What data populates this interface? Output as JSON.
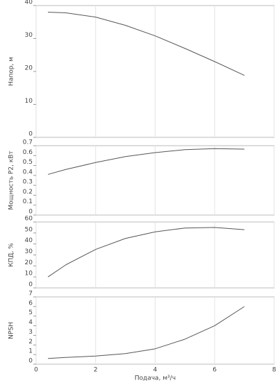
{
  "chart_data": [
    {
      "type": "line",
      "ylabel": "Напор, м",
      "x": [
        0.4,
        1,
        2,
        3,
        4,
        5,
        6,
        7
      ],
      "series": [
        {
          "color": "#555555",
          "values": [
            38,
            37.8,
            36.5,
            34,
            30.8,
            27,
            23,
            18.8
          ]
        }
      ],
      "xlim": [
        0,
        8
      ],
      "xticks": [
        0,
        2,
        4,
        6,
        8
      ],
      "ylim": [
        0,
        40
      ],
      "yticks": [
        0,
        10,
        20,
        30,
        40
      ],
      "grid": true
    },
    {
      "type": "line",
      "ylabel": "Мощность P2, кВт",
      "x": [
        0.4,
        1,
        2,
        3,
        4,
        5,
        6,
        7
      ],
      "series": [
        {
          "color": "#555555",
          "values": [
            0.41,
            0.46,
            0.53,
            0.59,
            0.63,
            0.66,
            0.67,
            0.665
          ]
        }
      ],
      "xlim": [
        0,
        8
      ],
      "xticks": [
        0,
        2,
        4,
        6,
        8
      ],
      "ylim": [
        0,
        0.7
      ],
      "yticks": [
        0,
        0.1,
        0.2,
        0.3,
        0.4,
        0.5,
        0.6,
        0.7
      ],
      "grid": true
    },
    {
      "type": "line",
      "ylabel": "КПД, %",
      "x": [
        0.4,
        1,
        2,
        3,
        4,
        5,
        6,
        7
      ],
      "series": [
        {
          "color": "#555555",
          "values": [
            10,
            21,
            35,
            45,
            51,
            54.5,
            55,
            53
          ]
        }
      ],
      "xlim": [
        0,
        8
      ],
      "xticks": [
        0,
        2,
        4,
        6,
        8
      ],
      "ylim": [
        0,
        60
      ],
      "yticks": [
        0,
        10,
        20,
        30,
        40,
        50,
        60
      ],
      "grid": true
    },
    {
      "type": "line",
      "ylabel": "NPSH",
      "xlabel": "Подача, м³/ч",
      "x": [
        0.4,
        1,
        2,
        3,
        4,
        5,
        6,
        7
      ],
      "series": [
        {
          "color": "#555555",
          "values": [
            0.6,
            0.7,
            0.85,
            1.1,
            1.6,
            2.6,
            4,
            6
          ]
        }
      ],
      "xlim": [
        0,
        8
      ],
      "xticks": [
        0,
        2,
        4,
        6,
        8
      ],
      "ylim": [
        0,
        7
      ],
      "yticks": [
        0,
        1,
        2,
        3,
        4,
        5,
        6,
        7
      ],
      "grid": true
    }
  ]
}
